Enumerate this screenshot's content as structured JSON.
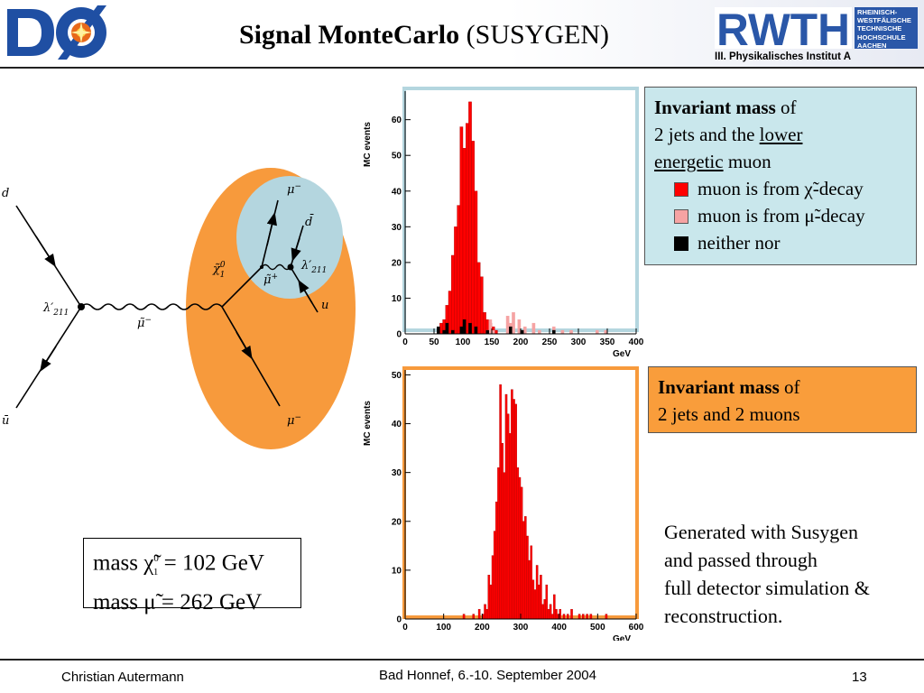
{
  "header": {
    "title_bold": "Signal MonteCarlo",
    "title_rest": "(SUSYGEN)",
    "left_logo": "D0 experiment logo",
    "right_logo_letters": "RWTH",
    "right_logo_text": [
      "RHEINISCH-",
      "WESTFÄLISCHE",
      "TECHNISCHE",
      "HOCHSCHULE",
      "AACHEN"
    ],
    "institute": "III. Physikalisches Institut A",
    "colors": {
      "logo_blue": "#2a57a8",
      "d0_blue": "#1f4fa3",
      "d0_orange": "#e86a1a"
    }
  },
  "diagram": {
    "labels": {
      "d": "d",
      "ubar": "ū",
      "lambda_left": "λ′",
      "lambda_left_sub": "211",
      "smu_minus": "μ̃",
      "smu_minus_sup": "−",
      "chi": "χ̃",
      "chi_sup": "0",
      "chi_sub": "1",
      "mu_minus_top": "μ",
      "mu_minus_top_sup": "−",
      "dbar": "d̄",
      "lambda_right": "λ′",
      "lambda_right_sub": "211",
      "smu_plus": "μ̃",
      "smu_plus_sup": "+",
      "u": "u",
      "mu_minus_bottom": "μ",
      "mu_minus_bottom_sup": "−"
    },
    "colors": {
      "orange_blob": "#f79a3c",
      "blue_blob": "#b4d6df"
    }
  },
  "mass_box": {
    "line1": "mass χ̃ = 102 GeV",
    "chi_sup": "0",
    "chi_sub": "1",
    "line2": "mass μ̃  = 262 GeV"
  },
  "info_box_1": {
    "title_bold": "Invariant mass",
    "title_rest": "of",
    "line2_pre": "2 jets and the",
    "line2_underlined": "lower",
    "line3_underlined": "energetic",
    "line3_rest": "muon",
    "legend": [
      {
        "label": "muon is from χ̃-decay",
        "color": "#ff0000"
      },
      {
        "label": "muon is from μ̃-decay",
        "color": "#f6a3a3"
      },
      {
        "label": "neither nor",
        "color": "#000000"
      }
    ],
    "bg_color": "#c9e7ec"
  },
  "info_box_2": {
    "title_bold": "Invariant mass",
    "title_rest": "of",
    "line2": "2 jets and 2 muons",
    "bg_color": "#f99d3b"
  },
  "generated_text": [
    "Generated with Susygen",
    "and passed through",
    "full detector simulation &",
    "reconstruction."
  ],
  "footer": {
    "author": "Christian Autermann",
    "event": "Bad Honnef, 6.-10. September 2004",
    "page": "13"
  },
  "chart_data": [
    {
      "type": "bar",
      "title": "",
      "xlabel": "GeV",
      "ylabel": "MC events",
      "xlim": [
        0,
        400
      ],
      "ylim": [
        0,
        68
      ],
      "xticks": [
        0,
        50,
        100,
        150,
        200,
        250,
        300,
        350,
        400
      ],
      "yticks": [
        0,
        10,
        20,
        30,
        40,
        50,
        60
      ],
      "bin_width": 5,
      "series": [
        {
          "name": "muon is from χ̃-decay",
          "color": "#ff0000",
          "bins": [
            [
              55,
              1
            ],
            [
              60,
              3
            ],
            [
              65,
              4
            ],
            [
              70,
              8
            ],
            [
              75,
              12
            ],
            [
              80,
              22
            ],
            [
              85,
              30
            ],
            [
              90,
              36
            ],
            [
              95,
              58
            ],
            [
              100,
              52
            ],
            [
              105,
              59
            ],
            [
              110,
              65
            ],
            [
              115,
              54
            ],
            [
              120,
              40
            ],
            [
              125,
              20
            ],
            [
              130,
              16
            ],
            [
              135,
              6
            ],
            [
              140,
              4
            ],
            [
              145,
              3
            ],
            [
              150,
              2
            ],
            [
              155,
              1
            ]
          ]
        },
        {
          "name": "muon is from μ̃-decay",
          "color": "#f6a3a3",
          "bins": [
            [
              140,
              1
            ],
            [
              145,
              4
            ],
            [
              150,
              1
            ],
            [
              175,
              5
            ],
            [
              180,
              3
            ],
            [
              185,
              6
            ],
            [
              195,
              4
            ],
            [
              200,
              1
            ],
            [
              205,
              2
            ],
            [
              220,
              3
            ],
            [
              230,
              1
            ],
            [
              255,
              2
            ],
            [
              270,
              1
            ],
            [
              285,
              1
            ],
            [
              330,
              1
            ],
            [
              345,
              1
            ]
          ]
        },
        {
          "name": "neither nor",
          "color": "#000000",
          "bins": [
            [
              55,
              2
            ],
            [
              65,
              1
            ],
            [
              70,
              3
            ],
            [
              80,
              1
            ],
            [
              95,
              2
            ],
            [
              100,
              4
            ],
            [
              110,
              3
            ],
            [
              120,
              2
            ],
            [
              140,
              1
            ],
            [
              180,
              2
            ],
            [
              200,
              1
            ],
            [
              255,
              1
            ]
          ]
        }
      ]
    },
    {
      "type": "bar",
      "title": "",
      "xlabel": "GeV",
      "ylabel": "MC events",
      "xlim": [
        0,
        600
      ],
      "ylim": [
        0,
        51
      ],
      "xticks": [
        0,
        100,
        200,
        300,
        400,
        500,
        600
      ],
      "yticks": [
        0,
        10,
        20,
        30,
        40,
        50
      ],
      "bin_width": 5,
      "series": [
        {
          "name": "",
          "color": "#ff0000",
          "bins": [
            [
              150,
              1
            ],
            [
              175,
              1
            ],
            [
              190,
              2
            ],
            [
              200,
              1
            ],
            [
              205,
              3
            ],
            [
              210,
              2
            ],
            [
              215,
              9
            ],
            [
              220,
              7
            ],
            [
              225,
              13
            ],
            [
              230,
              18
            ],
            [
              235,
              24
            ],
            [
              240,
              31
            ],
            [
              245,
              48
            ],
            [
              250,
              36
            ],
            [
              255,
              30
            ],
            [
              260,
              46
            ],
            [
              265,
              42
            ],
            [
              270,
              38
            ],
            [
              275,
              47
            ],
            [
              280,
              45
            ],
            [
              285,
              44
            ],
            [
              290,
              31
            ],
            [
              295,
              29
            ],
            [
              300,
              27
            ],
            [
              305,
              20
            ],
            [
              310,
              21
            ],
            [
              315,
              17
            ],
            [
              320,
              12
            ],
            [
              325,
              15
            ],
            [
              330,
              8
            ],
            [
              335,
              6
            ],
            [
              340,
              11
            ],
            [
              345,
              7
            ],
            [
              350,
              9
            ],
            [
              355,
              3
            ],
            [
              360,
              4
            ],
            [
              365,
              7
            ],
            [
              370,
              2
            ],
            [
              375,
              3
            ],
            [
              380,
              1
            ],
            [
              385,
              5
            ],
            [
              390,
              2
            ],
            [
              395,
              1
            ],
            [
              400,
              2
            ],
            [
              410,
              1
            ],
            [
              420,
              1
            ],
            [
              430,
              2
            ],
            [
              450,
              1
            ],
            [
              460,
              1
            ],
            [
              470,
              1
            ],
            [
              480,
              1
            ],
            [
              520,
              1
            ]
          ]
        }
      ]
    }
  ]
}
